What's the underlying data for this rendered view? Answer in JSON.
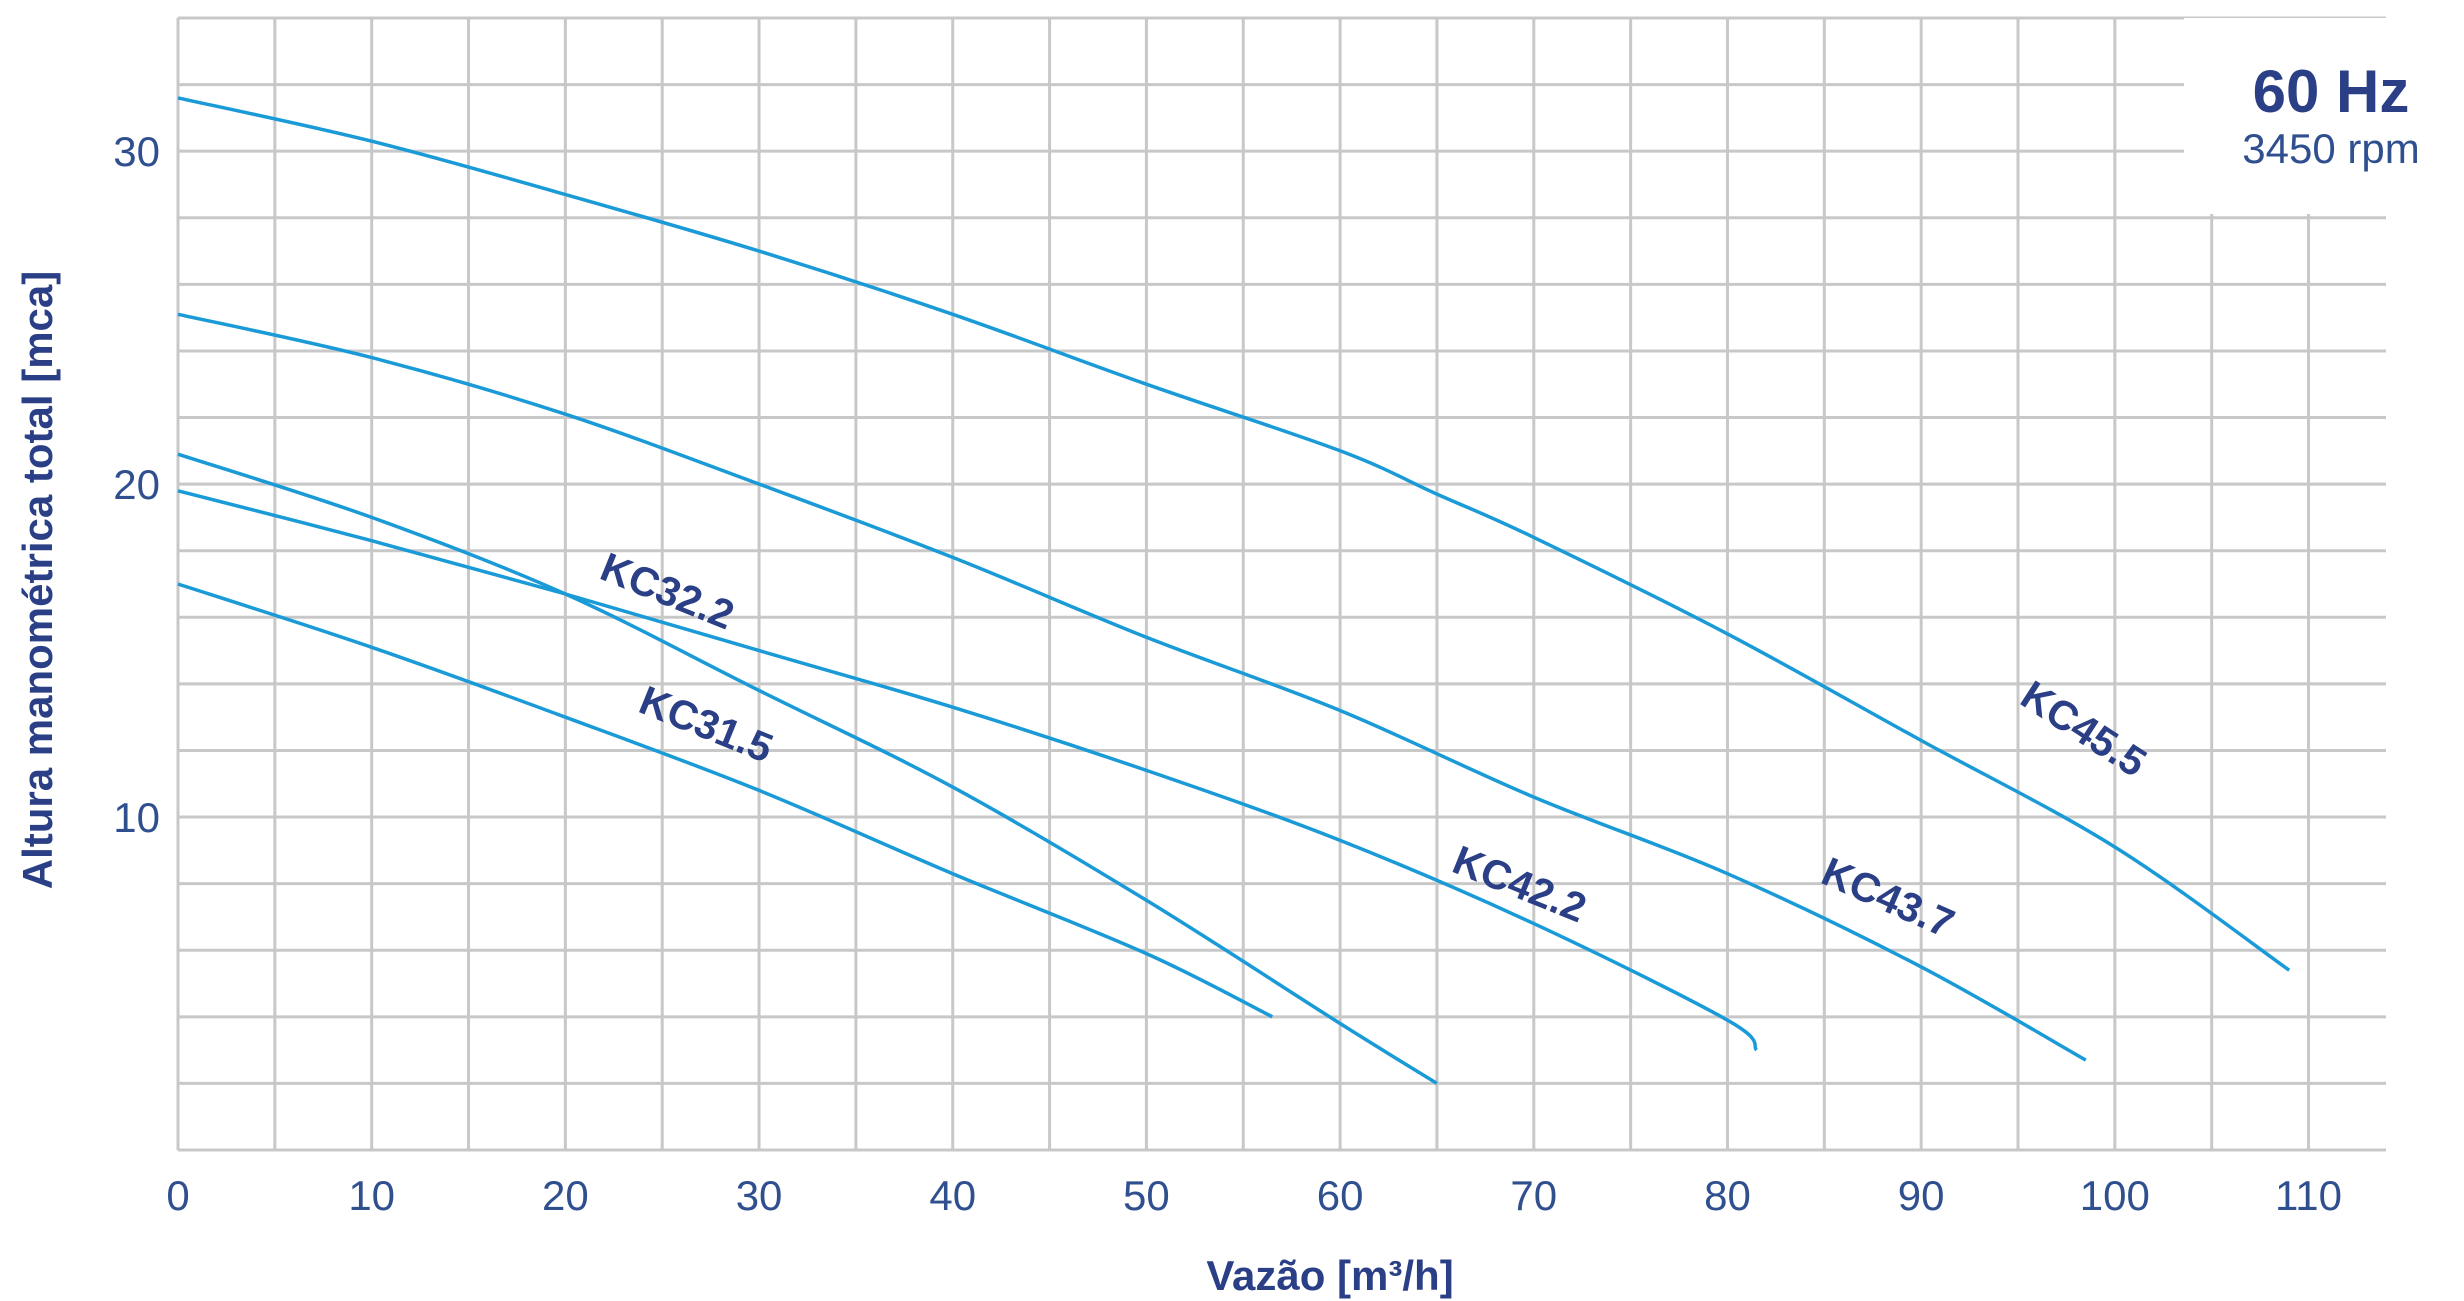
{
  "chart_data": {
    "type": "line",
    "xlabel": "Vazão [m³/h]",
    "ylabel": "Altura manométrica total [mca]",
    "xlim": [
      0,
      114
    ],
    "ylim": [
      0,
      34
    ],
    "x_ticks": [
      0,
      10,
      20,
      30,
      40,
      50,
      60,
      70,
      80,
      90,
      100,
      110
    ],
    "y_ticks": [
      10,
      20,
      30
    ],
    "x_grid_step": 5,
    "y_grid_step": 2,
    "grid": true,
    "legend": "none",
    "annotation": {
      "frequency": "60 Hz",
      "speed": "3450 rpm",
      "placement": "top-right"
    },
    "series_color": "#1a9ad6",
    "label_color": "#2a3f85",
    "series": [
      {
        "name": "KC31.5",
        "label_pos": {
          "x": 27,
          "y": 12.4
        },
        "label_angle": 22,
        "points": [
          [
            0,
            17
          ],
          [
            10,
            15.1
          ],
          [
            20,
            13
          ],
          [
            30,
            10.8
          ],
          [
            40,
            8.3
          ],
          [
            50,
            5.9
          ],
          [
            56.5,
            4.0
          ]
        ]
      },
      {
        "name": "KC32.2",
        "label_pos": {
          "x": 25,
          "y": 16.4
        },
        "label_angle": 22,
        "points": [
          [
            0,
            20.9
          ],
          [
            10,
            19.0
          ],
          [
            20,
            16.7
          ],
          [
            30,
            13.8
          ],
          [
            40,
            10.9
          ],
          [
            50,
            7.5
          ],
          [
            60,
            3.8
          ],
          [
            65,
            2.0
          ]
        ]
      },
      {
        "name": "KC42.2",
        "label_pos": {
          "x": 69,
          "y": 7.6
        },
        "label_angle": 22,
        "points": [
          [
            0,
            19.8
          ],
          [
            10,
            18.3
          ],
          [
            20,
            16.7
          ],
          [
            30,
            15.0
          ],
          [
            40,
            13.3
          ],
          [
            50,
            11.4
          ],
          [
            60,
            9.3
          ],
          [
            70,
            6.8
          ],
          [
            80,
            3.9
          ],
          [
            81.5,
            3.0
          ]
        ]
      },
      {
        "name": "KC43.7",
        "label_pos": {
          "x": 88,
          "y": 7.2
        },
        "label_angle": 24,
        "points": [
          [
            0,
            25.1
          ],
          [
            10,
            23.8
          ],
          [
            20,
            22.1
          ],
          [
            30,
            20.0
          ],
          [
            40,
            17.8
          ],
          [
            50,
            15.4
          ],
          [
            60,
            13.2
          ],
          [
            70,
            10.6
          ],
          [
            80,
            8.3
          ],
          [
            90,
            5.5
          ],
          [
            98.5,
            2.7
          ]
        ]
      },
      {
        "name": "KC45.5",
        "label_pos": {
          "x": 98,
          "y": 12.3
        },
        "label_angle": 33,
        "points": [
          [
            0,
            31.6
          ],
          [
            10,
            30.3
          ],
          [
            20,
            28.7
          ],
          [
            30,
            27.0
          ],
          [
            40,
            25.1
          ],
          [
            50,
            23.0
          ],
          [
            60,
            21.0
          ],
          [
            65,
            19.7
          ],
          [
            70,
            18.4
          ],
          [
            80,
            15.5
          ],
          [
            90,
            12.3
          ],
          [
            100,
            9.1
          ],
          [
            109,
            5.4
          ]
        ]
      }
    ]
  }
}
